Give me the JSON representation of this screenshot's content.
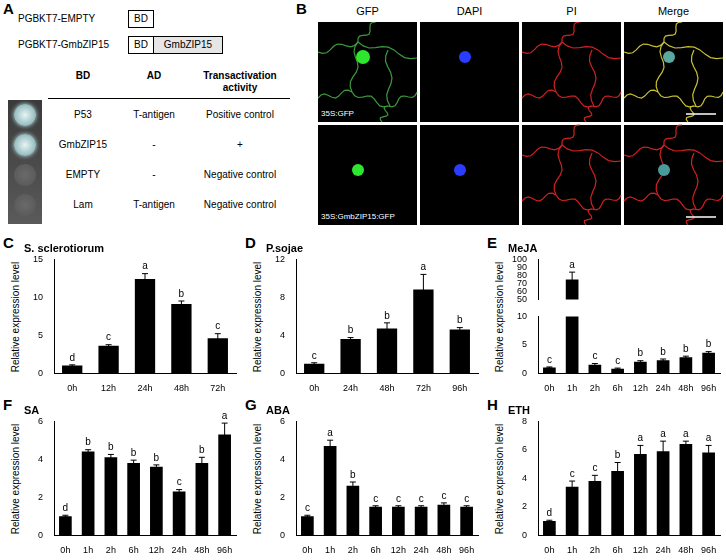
{
  "panel_letters": [
    "A",
    "B",
    "C",
    "D",
    "E",
    "F",
    "G",
    "H"
  ],
  "panel_A": {
    "constructs": [
      {
        "name": "PGBKT7-EMPTY",
        "domains": [
          "BD"
        ]
      },
      {
        "name": "PGBKT7-GmbZIP15",
        "domains": [
          "BD",
          "GmbZIP15"
        ]
      }
    ],
    "table": {
      "header": [
        "BD",
        "AD",
        "Transactivation activity"
      ],
      "rows": [
        [
          "P53",
          "T-antigen",
          "Positive control"
        ],
        [
          "GmbZIP15",
          "-",
          "+"
        ],
        [
          "EMPTY",
          "-",
          "Negative control"
        ],
        [
          "Lam",
          "T-antigen",
          "Negative control"
        ]
      ]
    }
  },
  "panel_B": {
    "columns": [
      "GFP",
      "DAPI",
      "PI",
      "Merge"
    ],
    "rows": [
      "35S:GFP",
      "35S:GmbZIP15:GFP"
    ]
  },
  "chart_data": [
    {
      "type": "bar",
      "title": "S. sclerotiorum",
      "ylabel": "Relative expression level",
      "categories": [
        "0h",
        "12h",
        "24h",
        "48h",
        "72h"
      ],
      "values": [
        1.0,
        3.6,
        12.4,
        9.1,
        4.6
      ],
      "errors": [
        0.1,
        0.15,
        0.7,
        0.4,
        0.6
      ],
      "letters": [
        "d",
        "c",
        "a",
        "b",
        "c"
      ],
      "color": "#000000",
      "ylim": [
        0,
        15
      ],
      "yticks": [
        0,
        5,
        10,
        15
      ],
      "grid": false
    },
    {
      "type": "bar",
      "title": "P.sojae",
      "ylabel": "Relative expression level",
      "categories": [
        "0h",
        "24h",
        "48h",
        "72h",
        "96h"
      ],
      "values": [
        1.0,
        3.6,
        4.7,
        8.8,
        4.6
      ],
      "errors": [
        0.1,
        0.15,
        0.6,
        1.6,
        0.2
      ],
      "letters": [
        "c",
        "b",
        "b",
        "a",
        "b"
      ],
      "color": "#000000",
      "ylim": [
        0,
        12
      ],
      "yticks": [
        0,
        4,
        8,
        12
      ],
      "grid": false
    },
    {
      "type": "bar",
      "title": "MeJA",
      "ylabel": "Relative expression level",
      "categories": [
        "0h",
        "1h",
        "2h",
        "6h",
        "12h",
        "24h",
        "48h",
        "96h"
      ],
      "values": [
        1.0,
        75,
        1.5,
        0.8,
        2.0,
        2.3,
        2.8,
        3.6
      ],
      "errors": [
        0.1,
        9,
        0.2,
        0.1,
        0.2,
        0.2,
        0.2,
        0.2
      ],
      "letters": [
        "c",
        "a",
        "c",
        "c",
        "b",
        "b",
        "b",
        "b"
      ],
      "color": "#000000",
      "ylim": [
        0,
        100
      ],
      "yticks": [
        0,
        5,
        10,
        50,
        60,
        70,
        80,
        90,
        100
      ],
      "grid": false
    },
    {
      "type": "bar",
      "title": "SA",
      "ylabel": "Relative expression level",
      "categories": [
        "0h",
        "1h",
        "2h",
        "6h",
        "12h",
        "24h",
        "48h",
        "96h"
      ],
      "values": [
        1.0,
        4.4,
        4.1,
        3.8,
        3.6,
        2.3,
        3.8,
        5.3
      ],
      "errors": [
        0.05,
        0.1,
        0.15,
        0.15,
        0.1,
        0.1,
        0.3,
        0.6
      ],
      "letters": [
        "d",
        "b",
        "b",
        "b",
        "b",
        "c",
        "b",
        "a"
      ],
      "color": "#000000",
      "ylim": [
        0,
        6
      ],
      "yticks": [
        0,
        2,
        4,
        6
      ],
      "grid": false
    },
    {
      "type": "bar",
      "title": "ABA",
      "ylabel": "Relative expression level",
      "categories": [
        "0h",
        "1h",
        "2h",
        "6h",
        "12h",
        "24h",
        "48h",
        "96h"
      ],
      "values": [
        1.0,
        4.7,
        2.6,
        1.5,
        1.5,
        1.5,
        1.6,
        1.5
      ],
      "errors": [
        0.05,
        0.3,
        0.2,
        0.05,
        0.05,
        0.05,
        0.1,
        0.05
      ],
      "letters": [
        "c",
        "a",
        "b",
        "c",
        "c",
        "c",
        "c",
        "c"
      ],
      "color": "#000000",
      "ylim": [
        0,
        6
      ],
      "yticks": [
        0,
        2,
        4,
        6
      ],
      "grid": false
    },
    {
      "type": "bar",
      "title": "ETH",
      "ylabel": "Relative expression level",
      "categories": [
        "0h",
        "1h",
        "2h",
        "6h",
        "12h",
        "24h",
        "48h",
        "96h"
      ],
      "values": [
        1.0,
        3.4,
        3.8,
        4.5,
        5.7,
        5.9,
        6.4,
        5.8
      ],
      "errors": [
        0.05,
        0.4,
        0.4,
        0.6,
        0.6,
        0.7,
        0.2,
        0.5
      ],
      "letters": [
        "d",
        "c",
        "c",
        "b",
        "a",
        "a",
        "a",
        "a"
      ],
      "color": "#000000",
      "ylim": [
        0,
        8
      ],
      "yticks": [
        0,
        2,
        4,
        6,
        8
      ],
      "grid": false
    }
  ]
}
